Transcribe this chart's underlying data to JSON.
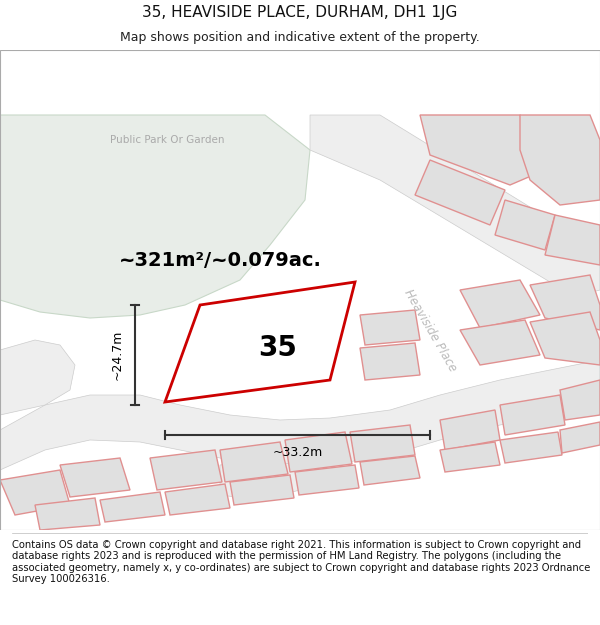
{
  "title": "35, HEAVISIDE PLACE, DURHAM, DH1 1JG",
  "subtitle": "Map shows position and indicative extent of the property.",
  "footer": "Contains OS data © Crown copyright and database right 2021. This information is subject to Crown copyright and database rights 2023 and is reproduced with the permission of HM Land Registry. The polygons (including the associated geometry, namely x, y co-ordinates) are subject to Crown copyright and database rights 2023 Ordnance Survey 100026316.",
  "area_label": "~321m²/~0.079ac.",
  "width_label": "~33.2m",
  "height_label": "~24.7m",
  "property_number": "35",
  "park_label": "Public Park Or Garden",
  "road_label": "Heaviside Place",
  "background_color": "#ffffff",
  "map_bg_color": "#f7f7f7",
  "park_color": "#e8ede8",
  "building_fill_color": "#e0e0e0",
  "building_edge_color": "#e09090",
  "property_outline_color": "#cc0000",
  "dim_line_color": "#333333",
  "title_fontsize": 11,
  "subtitle_fontsize": 9,
  "footer_fontsize": 7.2
}
